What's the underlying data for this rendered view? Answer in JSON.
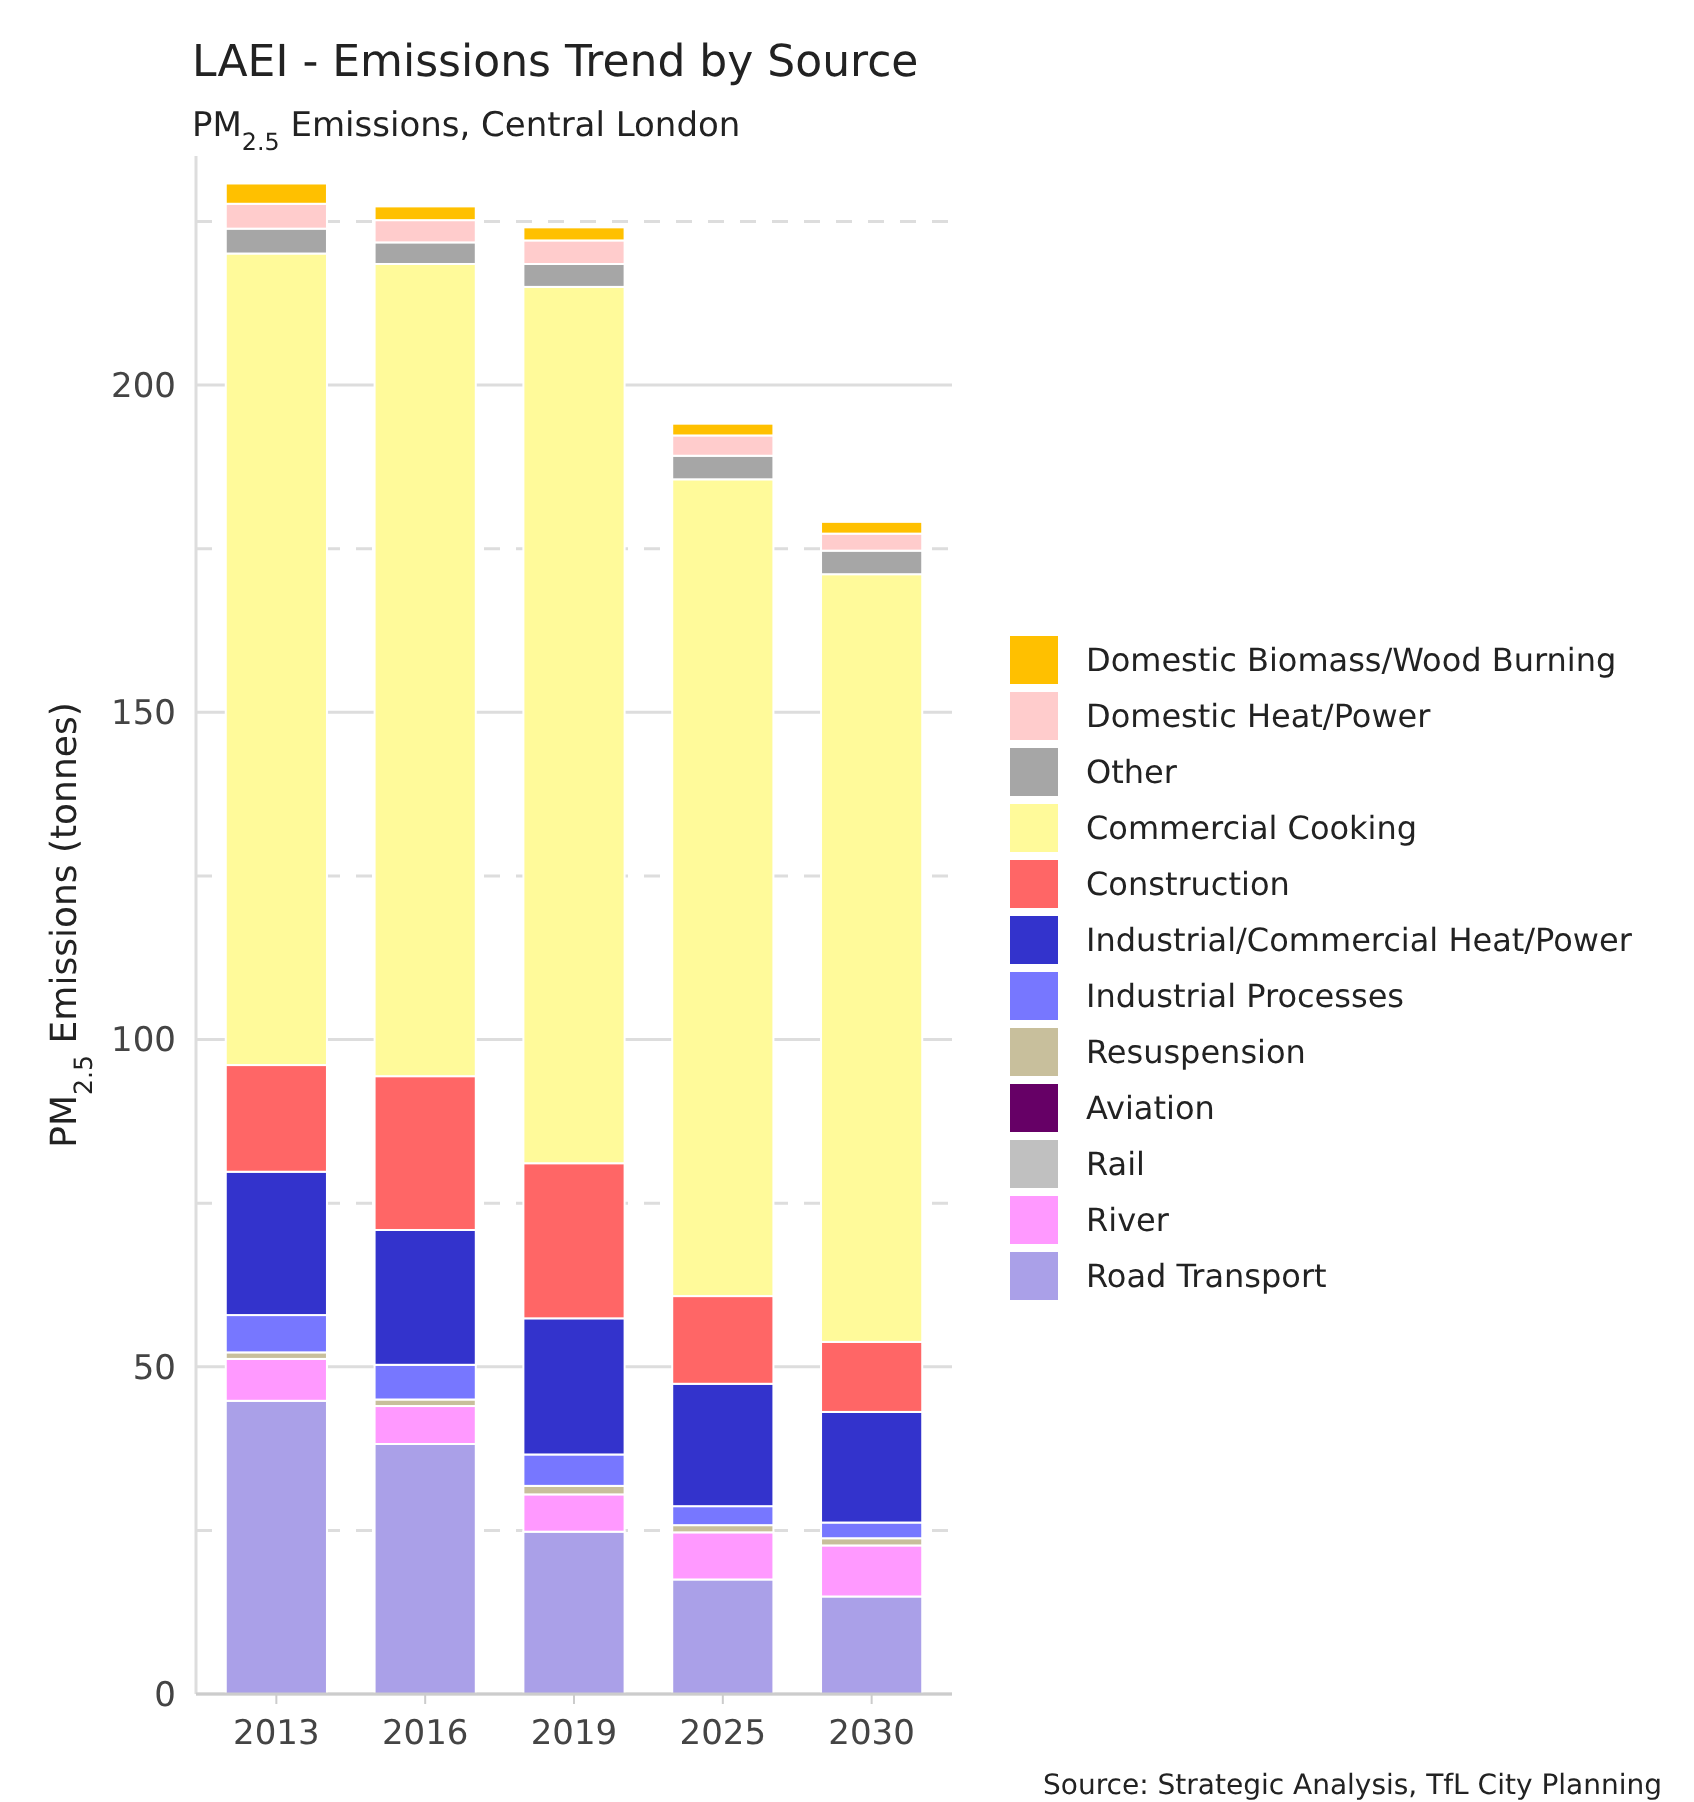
{
  "chart_data": {
    "type": "bar",
    "stacked": true,
    "title": "LAEI - Emissions Trend by Source",
    "subtitle": "PM$_{2.5}$ Emissions, Central London",
    "ylabel": "PM$_{2.5}$ Emissions (tonnes)",
    "annotations": [
      "Source: Strategic Analysis, TfL City Planning"
    ],
    "categories": [
      "2013",
      "2016",
      "2019",
      "2025",
      "2030"
    ],
    "ylim": [
      0,
      235
    ],
    "yticks": [
      0,
      {
        "value": 25,
        "label": null
      },
      50,
      {
        "value": 75,
        "label": null
      },
      100,
      {
        "value": 125,
        "label": null
      },
      150,
      {
        "value": 175,
        "label": null
      },
      200,
      {
        "value": 225,
        "label": null
      }
    ],
    "grid": "y",
    "legend": "right",
    "series": [
      {
        "name": "Road Transport",
        "color": "#aaa0e8",
        "values": [
          44.8,
          38.2,
          24.8,
          17.5,
          14.9
        ]
      },
      {
        "name": "River",
        "color": "#ff99ff",
        "values": [
          6.4,
          5.8,
          5.7,
          7.2,
          7.8
        ]
      },
      {
        "name": "Rail",
        "color": "#c0c0c0",
        "values": [
          null,
          null,
          null,
          null,
          null
        ]
      },
      {
        "name": "Aviation",
        "color": "#660066",
        "values": [
          null,
          null,
          null,
          null,
          null
        ]
      },
      {
        "name": "Resuspension",
        "color": "#c8bf9c",
        "values": [
          1.0,
          1.0,
          1.3,
          1.1,
          1.1
        ]
      },
      {
        "name": "Industrial Processes",
        "color": "#7777ff",
        "values": [
          5.7,
          5.3,
          4.8,
          2.9,
          2.4
        ]
      },
      {
        "name": "Industrial/Commercial Heat/Power",
        "color": "#3333cc",
        "values": [
          21.9,
          20.6,
          20.8,
          18.7,
          16.9
        ]
      },
      {
        "name": "Construction",
        "color": "#ff6666",
        "values": [
          16.3,
          23.5,
          23.7,
          13.4,
          10.7
        ]
      },
      {
        "name": "Commercial Cooking",
        "color": "#fffa9a",
        "values": [
          124,
          124.1,
          133.9,
          124.8,
          117.3
        ]
      },
      {
        "name": "Other",
        "color": "#a6a6a6",
        "values": [
          3.8,
          3.3,
          3.5,
          3.6,
          3.6
        ]
      },
      {
        "name": "Domestic Heat/Power",
        "color": "#ffcccc",
        "values": [
          3.8,
          3.4,
          3.6,
          3.1,
          2.6
        ]
      },
      {
        "name": "Domestic Biomass/Wood Burning",
        "color": "#ffc000",
        "values": [
          3.1,
          2.1,
          2.0,
          1.8,
          1.8
        ]
      }
    ]
  }
}
